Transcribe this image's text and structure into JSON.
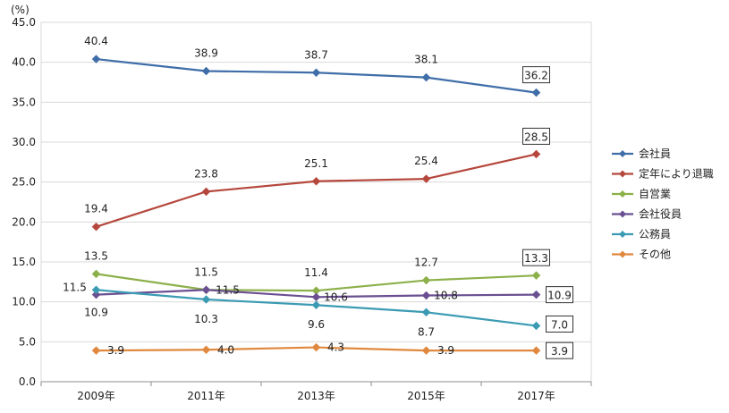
{
  "chart_data": {
    "type": "line",
    "unit": "(%)",
    "categories": [
      "2009年",
      "2011年",
      "2013年",
      "2015年",
      "2017年"
    ],
    "ylim": [
      0,
      45
    ],
    "yticks": [
      "0.0",
      "5.0",
      "10.0",
      "15.0",
      "20.0",
      "25.0",
      "30.0",
      "35.0",
      "40.0",
      "45.0"
    ],
    "grid": true,
    "legend_position": "right",
    "series": [
      {
        "name": "会社員",
        "color": "#3f6ea8",
        "values": [
          40.4,
          38.9,
          38.7,
          38.1,
          36.2
        ],
        "labels": [
          "40.4",
          "38.9",
          "38.7",
          "38.1",
          "36.2"
        ]
      },
      {
        "name": "定年により退職",
        "color": "#b5473c",
        "values": [
          19.4,
          23.8,
          25.1,
          25.4,
          28.5
        ],
        "labels": [
          "19.4",
          "23.8",
          "25.1",
          "25.4",
          "28.5"
        ]
      },
      {
        "name": "自営業",
        "color": "#8cb04a",
        "values": [
          13.5,
          11.5,
          11.4,
          12.7,
          13.3
        ],
        "labels": [
          "13.5",
          "11.5",
          "11.4",
          "12.7",
          "13.3"
        ]
      },
      {
        "name": "会社役員",
        "color": "#6b4f92",
        "values": [
          10.9,
          11.5,
          10.6,
          10.8,
          10.9
        ],
        "labels": [
          "10.9",
          "11.5",
          "10.6",
          "10.8",
          "10.9"
        ]
      },
      {
        "name": "公務員",
        "color": "#3b9bb3",
        "values": [
          11.5,
          10.3,
          9.6,
          8.7,
          7.0
        ],
        "labels": [
          "11.5",
          "10.3",
          "9.6",
          "8.7",
          "7.0"
        ]
      },
      {
        "name": "その他",
        "color": "#e0883e",
        "values": [
          3.9,
          4.0,
          4.3,
          3.9,
          3.9
        ],
        "labels": [
          "3.9",
          "4.0",
          "4.3",
          "3.9",
          "3.9"
        ]
      }
    ]
  }
}
